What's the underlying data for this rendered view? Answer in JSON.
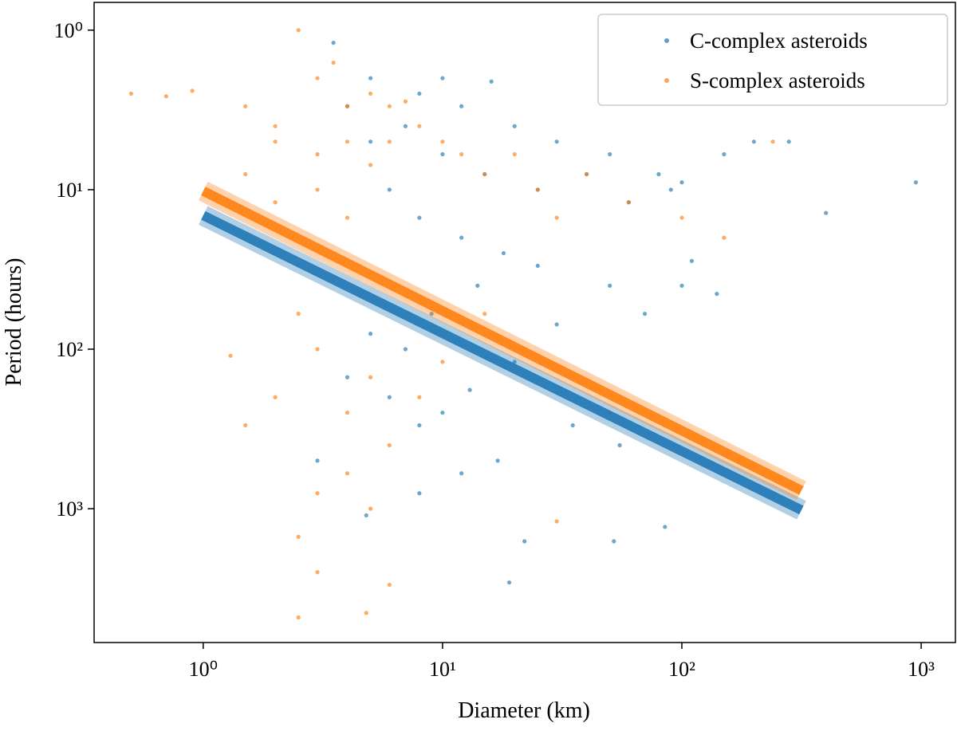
{
  "chart_data": {
    "type": "scatter",
    "xlabel": "Diameter (km)",
    "ylabel": "Period (hours)",
    "xlog": true,
    "ylog": true,
    "y_inverted": true,
    "xlim": [
      0.35,
      1390
    ],
    "ylim": [
      0.67,
      6900
    ],
    "xticks": [
      {
        "value": 1,
        "label": "10⁰"
      },
      {
        "value": 10,
        "label": "10¹"
      },
      {
        "value": 100,
        "label": "10²"
      },
      {
        "value": 1000,
        "label": "10³"
      }
    ],
    "yticks": [
      {
        "value": 1,
        "label": "10⁰"
      },
      {
        "value": 10,
        "label": "10¹"
      },
      {
        "value": 100,
        "label": "10²"
      },
      {
        "value": 1000,
        "label": "10³"
      }
    ],
    "legend": "upper right",
    "series": [
      {
        "name": "C-complex asteroids",
        "color": "#1f77b4",
        "x": [
          3.5,
          5,
          8,
          10,
          16,
          12,
          20,
          30,
          50,
          80,
          100,
          150,
          200,
          280,
          950,
          400,
          110,
          90,
          60,
          40,
          25,
          15,
          10,
          7,
          5,
          4,
          6,
          8,
          12,
          18,
          25,
          14,
          9,
          7,
          5,
          4,
          6,
          8,
          10,
          13,
          20,
          30,
          50,
          100,
          140,
          70,
          55,
          85,
          52,
          22,
          19,
          4.8,
          3,
          12,
          8,
          17,
          35
        ],
        "values": [
          1.2,
          2,
          2.5,
          2,
          2.1,
          3,
          4,
          5,
          6,
          8,
          9,
          6,
          5,
          5,
          9,
          14,
          28,
          10,
          12,
          8,
          10,
          8,
          6,
          4,
          5,
          3,
          10,
          15,
          20,
          25,
          30,
          40,
          60,
          100,
          80,
          150,
          200,
          300,
          250,
          180,
          120,
          70,
          40,
          40,
          45,
          60,
          400,
          1300,
          1600,
          1600,
          2900,
          1100,
          500,
          600,
          800,
          500,
          300
        ]
      },
      {
        "name": "S-complex asteroids",
        "color": "#ff7f0e",
        "x": [
          0.5,
          0.7,
          0.9,
          1.5,
          2,
          2.5,
          3,
          3.5,
          4,
          5,
          6,
          7,
          2,
          3,
          4,
          5,
          6,
          8,
          10,
          12,
          15,
          20,
          25,
          30,
          40,
          60,
          100,
          150,
          240,
          1.5,
          2,
          3,
          4,
          2.5,
          3,
          2,
          4,
          5,
          6,
          3,
          4,
          5,
          2.5,
          3,
          4.8,
          2.5,
          6,
          1.3,
          1.5,
          8,
          10,
          15,
          30,
          50
        ],
        "values": [
          2.5,
          2.6,
          2.4,
          3,
          4,
          1,
          2,
          1.6,
          3,
          2.5,
          3,
          2.8,
          5,
          6,
          5,
          7,
          5,
          4,
          5,
          6,
          8,
          6,
          10,
          15,
          8,
          12,
          15,
          20,
          5,
          8,
          12,
          10,
          15,
          60,
          100,
          200,
          250,
          150,
          400,
          800,
          600,
          1000,
          1500,
          2500,
          4500,
          4800,
          3000,
          110,
          300,
          200,
          120,
          60,
          1200,
          250
        ]
      }
    ],
    "fits": [
      {
        "color": "#1f77b4",
        "x": [
          1,
          316
        ],
        "values": [
          14.5,
          1020
        ]
      },
      {
        "color": "#ff7f0e",
        "x": [
          1,
          316
        ],
        "values": [
          10.2,
          770
        ]
      }
    ]
  }
}
